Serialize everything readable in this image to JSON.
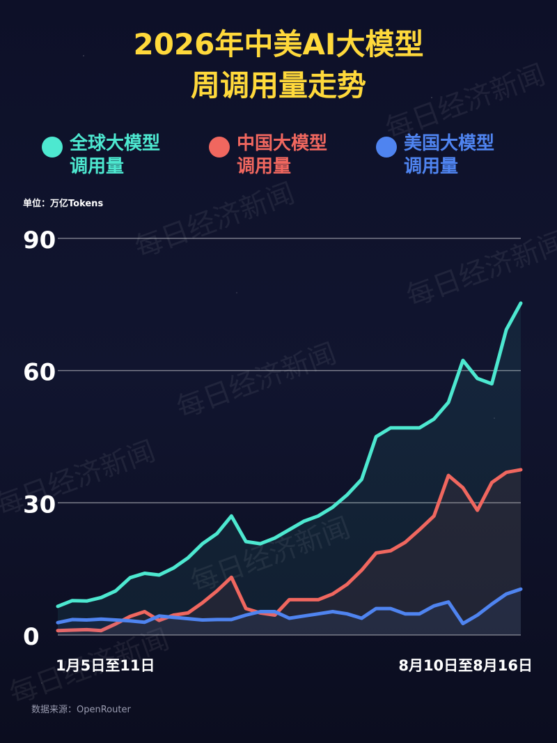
{
  "chart_data": {
    "type": "line",
    "title_lines": [
      "2026年中美AI大模型",
      "周调用量走势"
    ],
    "unit": "单位：万亿Tokens",
    "source": "数据来源：OpenRouter",
    "watermark": "每日经济新闻",
    "categories": [
      "1月5日至11日",
      null,
      null,
      null,
      null,
      null,
      null,
      null,
      null,
      null,
      null,
      null,
      null,
      null,
      null,
      null,
      null,
      null,
      null,
      null,
      null,
      null,
      null,
      null,
      null,
      null,
      null,
      null,
      null,
      null,
      null,
      null,
      "8月10日至8月16日"
    ],
    "series": [
      {
        "name": "全球大模型调用量",
        "color": "#4de8d0",
        "values": [
          6.5,
          7.8,
          7.7,
          8.5,
          10,
          13,
          14,
          13.6,
          15.2,
          17.5,
          20.7,
          23,
          27,
          21.2,
          20.7,
          22,
          23.9,
          25.8,
          27,
          29,
          31.8,
          35.3,
          45,
          47,
          47,
          47,
          49,
          52.8,
          62.3,
          58.2,
          57,
          69.3,
          75.3
        ]
      },
      {
        "name": "中国大模型调用量",
        "color": "#f0675f",
        "values": [
          1,
          1.1,
          1.2,
          1,
          2.5,
          4.2,
          5.3,
          3.3,
          4.5,
          5,
          7.3,
          10,
          13.1,
          6,
          5,
          4.5,
          8,
          8,
          8,
          9.3,
          11.5,
          14.7,
          18.6,
          19.1,
          21,
          23.9,
          27,
          36.2,
          33.4,
          28.3,
          34.6,
          36.9,
          37.5
        ]
      },
      {
        "name": "美国大模型调用量",
        "color": "#4f84f0",
        "values": [
          2.8,
          3.5,
          3.4,
          3.6,
          3.4,
          3.2,
          2.9,
          4.3,
          4,
          3.7,
          3.4,
          3.5,
          3.5,
          4.5,
          5.3,
          5.3,
          3.8,
          4.3,
          4.8,
          5.3,
          4.8,
          3.8,
          6,
          6,
          4.8,
          4.8,
          6.6,
          7.5,
          2.6,
          4.5,
          7,
          9.3,
          10.4
        ]
      }
    ],
    "ylim": [
      0,
      90
    ],
    "yticks": [
      0,
      30,
      60,
      90
    ],
    "grid": true
  }
}
